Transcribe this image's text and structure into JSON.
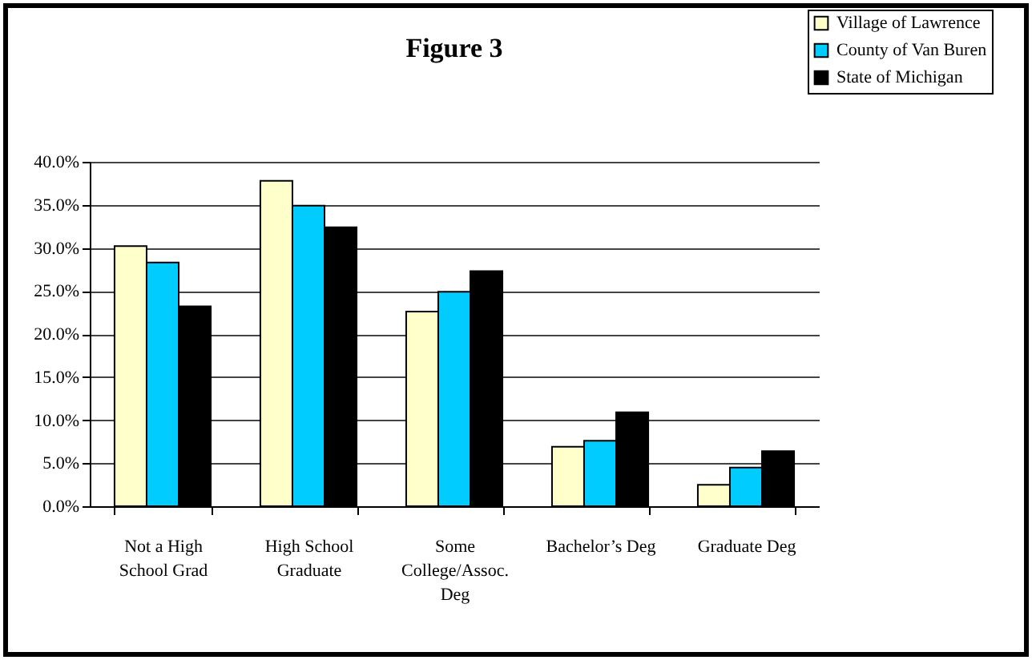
{
  "chart_data": {
    "type": "bar",
    "title": "Figure 3",
    "categories": [
      "Not a High School Grad",
      "High School Graduate",
      "Some College/Assoc. Deg",
      "Bachelor’s Deg",
      "Graduate Deg"
    ],
    "series": [
      {
        "name": "Village of Lawrence",
        "color": "#ffffcc",
        "values": [
          30.2,
          37.8,
          22.6,
          6.9,
          2.5
        ]
      },
      {
        "name": "County of Van Buren",
        "color": "#00ccff",
        "values": [
          28.3,
          34.9,
          24.9,
          7.6,
          4.5
        ]
      },
      {
        "name": "State of Michigan",
        "color": "#000000",
        "values": [
          23.2,
          32.4,
          27.3,
          10.9,
          6.4
        ]
      }
    ],
    "ylim": [
      0,
      40
    ],
    "yticks": [
      {
        "value": 0,
        "label": "0.0%"
      },
      {
        "value": 5,
        "label": "5.0%"
      },
      {
        "value": 10,
        "label": "10.0%"
      },
      {
        "value": 15,
        "label": "15.0%"
      },
      {
        "value": 20,
        "label": "20.0%"
      },
      {
        "value": 25,
        "label": "25.0%"
      },
      {
        "value": 30,
        "label": "30.0%"
      },
      {
        "value": 35,
        "label": "35.0%"
      },
      {
        "value": 40,
        "label": "40.0%"
      }
    ],
    "grid": "y",
    "legend": "top right"
  }
}
